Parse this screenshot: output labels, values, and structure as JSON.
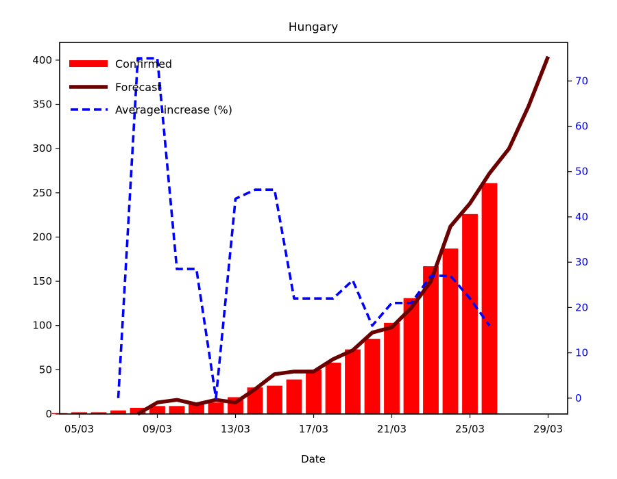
{
  "chart_data": {
    "type": "bar+line",
    "title": "Hungary",
    "xlabel": "Date",
    "ylabel": "",
    "ylabel_right": "",
    "x_start": "2020-03-04",
    "x_tick_labels": [
      "05/03",
      "09/03",
      "13/03",
      "17/03",
      "21/03",
      "25/03",
      "29/03"
    ],
    "x_ticks_days": [
      1,
      5,
      9,
      13,
      17,
      21,
      25
    ],
    "xlim_days": [
      0,
      26
    ],
    "ylim": [
      0,
      420
    ],
    "y_ticks": [
      0,
      50,
      100,
      150,
      200,
      250,
      300,
      350,
      400
    ],
    "ylim_right": [
      -3.5,
      78.5
    ],
    "y_ticks_right": [
      0,
      10,
      20,
      30,
      40,
      50,
      60,
      70
    ],
    "legend": {
      "position": "top-left",
      "entries": [
        "Confirmed",
        "Forecast",
        "Average increase (%)"
      ]
    },
    "colors": {
      "confirmed": "#ff0000",
      "forecast": "#6b0000",
      "average_increase": "#0000ff",
      "right_axis": "#0000ff"
    },
    "series": [
      {
        "name": "Confirmed",
        "type": "bar",
        "x_days": [
          0,
          1,
          2,
          3,
          4,
          5,
          6,
          7,
          8,
          9,
          10,
          11,
          12,
          13,
          14,
          15,
          16,
          17,
          18,
          19,
          20,
          21,
          22
        ],
        "values": [
          1,
          2,
          2,
          4,
          7,
          9,
          9,
          13,
          13,
          19,
          30,
          32,
          39,
          50,
          58,
          73,
          85,
          103,
          131,
          167,
          187,
          226,
          261
        ]
      },
      {
        "name": "Forecast",
        "type": "line",
        "x_days": [
          4,
          5,
          6,
          7,
          8,
          9,
          10,
          11,
          12,
          13,
          14,
          15,
          16,
          17,
          18,
          19,
          20,
          21,
          22,
          23,
          24,
          25
        ],
        "values": [
          0,
          13,
          16,
          11,
          16,
          13,
          28,
          45,
          48,
          48,
          62,
          72,
          92,
          98,
          120,
          150,
          212,
          238,
          272,
          300,
          348,
          404
        ]
      },
      {
        "name": "Average increase (%)",
        "type": "line",
        "axis": "right",
        "x_days": [
          3,
          4,
          5,
          6,
          7,
          8,
          9,
          10,
          11,
          12,
          13,
          14,
          15,
          16,
          17,
          18,
          19,
          20,
          21,
          22
        ],
        "values": [
          0,
          75,
          75,
          28.5,
          28.5,
          0,
          44,
          46,
          46,
          22,
          22,
          22,
          26,
          16,
          21,
          21,
          27,
          27,
          22,
          16
        ]
      }
    ]
  }
}
